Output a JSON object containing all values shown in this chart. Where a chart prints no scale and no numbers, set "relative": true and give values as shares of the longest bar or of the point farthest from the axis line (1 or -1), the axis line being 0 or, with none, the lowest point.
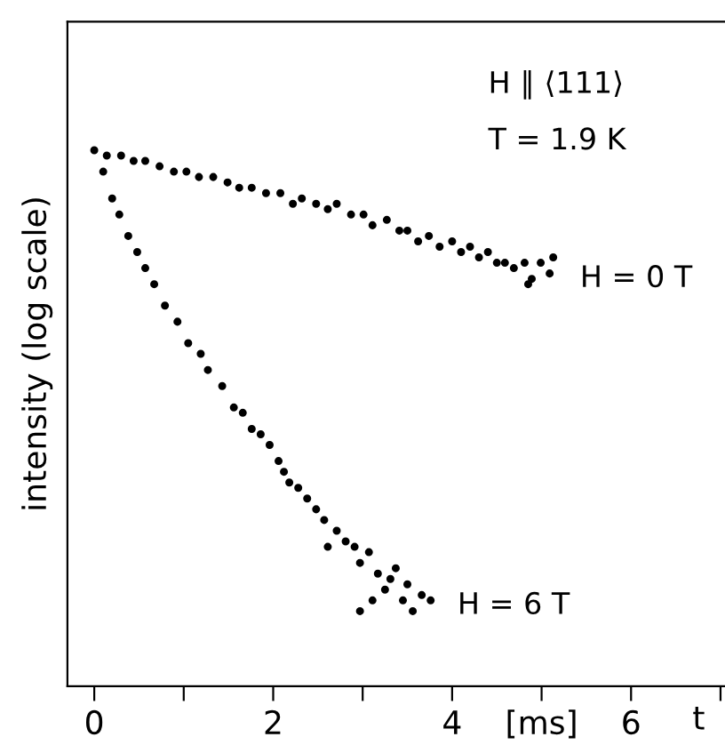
{
  "chart_data": {
    "type": "scatter",
    "relative": true,
    "ylabel": "intensity (log scale)",
    "xlabel": "t",
    "xlim": [
      -0.3,
      7.05
    ],
    "xticks": [
      0,
      {
        "value": 1,
        "label": null
      },
      2,
      {
        "value": 3,
        "label": null
      },
      4,
      {
        "value": 5,
        "label": "[ms]"
      },
      6,
      {
        "value": 7,
        "label": null
      }
    ],
    "annotations": [
      "H ∥ ⟨111⟩",
      "T = 1.9 K"
    ],
    "marker": "circle",
    "grid": false,
    "legend": false,
    "series": [
      {
        "name": "H = 0 T",
        "color": "#000000",
        "x": [
          0,
          0.14,
          0.3,
          0.44,
          0.57,
          0.73,
          0.89,
          1.03,
          1.17,
          1.33,
          1.49,
          1.62,
          1.76,
          1.92,
          2.08,
          2.22,
          2.32,
          2.48,
          2.61,
          2.71,
          2.87,
          3.01,
          3.11,
          3.27,
          3.41,
          3.5,
          3.62,
          3.74,
          3.86,
          4.0,
          4.1,
          4.2,
          4.3,
          4.4,
          4.5,
          4.59,
          4.69,
          4.81,
          4.89,
          4.99,
          5.09,
          4.85,
          5.13
        ],
        "values": [
          1.0,
          0.99,
          0.99,
          0.98,
          0.98,
          0.97,
          0.96,
          0.96,
          0.95,
          0.95,
          0.94,
          0.93,
          0.93,
          0.92,
          0.92,
          0.9,
          0.91,
          0.9,
          0.89,
          0.9,
          0.88,
          0.88,
          0.86,
          0.87,
          0.85,
          0.85,
          0.83,
          0.84,
          0.82,
          0.83,
          0.81,
          0.82,
          0.8,
          0.81,
          0.79,
          0.79,
          0.78,
          0.79,
          0.76,
          0.79,
          0.77,
          0.75,
          0.8
        ]
      },
      {
        "name": "H = 6 T",
        "color": "#000000",
        "x": [
          0.1,
          0.2,
          0.28,
          0.38,
          0.48,
          0.57,
          0.67,
          0.79,
          0.93,
          1.05,
          1.19,
          1.27,
          1.43,
          1.56,
          1.66,
          1.76,
          1.86,
          1.96,
          2.06,
          2.12,
          2.18,
          2.28,
          2.38,
          2.48,
          2.57,
          2.61,
          2.71,
          2.81,
          2.91,
          2.97,
          3.07,
          3.17,
          3.25,
          3.31,
          3.37,
          3.45,
          3.5,
          3.56,
          3.66,
          3.76,
          2.97,
          3.11
        ],
        "values": [
          0.96,
          0.91,
          0.88,
          0.84,
          0.81,
          0.78,
          0.75,
          0.71,
          0.68,
          0.64,
          0.62,
          0.59,
          0.56,
          0.52,
          0.51,
          0.48,
          0.47,
          0.45,
          0.42,
          0.4,
          0.38,
          0.37,
          0.35,
          0.33,
          0.31,
          0.26,
          0.29,
          0.27,
          0.26,
          0.23,
          0.25,
          0.21,
          0.18,
          0.2,
          0.22,
          0.16,
          0.19,
          0.14,
          0.17,
          0.16,
          0.14,
          0.16
        ]
      }
    ]
  }
}
